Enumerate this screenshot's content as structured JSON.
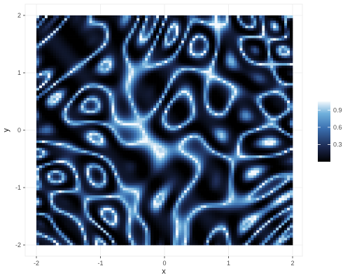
{
  "chart_data": {
    "type": "heatmap",
    "title": "",
    "xlabel": "x",
    "ylabel": "y",
    "xlim": [
      -2,
      2
    ],
    "ylim": [
      -2,
      2
    ],
    "x_ticks": [
      -2,
      -1,
      0,
      1,
      2
    ],
    "y_ticks": [
      -2,
      -1,
      0,
      1,
      2
    ],
    "x_tick_labels": [
      "-2",
      "-1",
      "0",
      "1",
      "2"
    ],
    "y_tick_labels": [
      "-2",
      "-1",
      "0",
      "1",
      "2"
    ],
    "grid": true,
    "legend": {
      "placement": "right",
      "title": "",
      "range": [
        0,
        1.05
      ],
      "breaks": [
        0.3,
        0.6,
        0.9
      ],
      "break_labels": [
        "0.3",
        "0.6",
        "0.9"
      ]
    },
    "colors": {
      "low": "#000000",
      "mid_low": "#1d2a52",
      "mid": "#3a6fb0",
      "mid_high": "#6fb0dc",
      "high": "#f2f8fc",
      "panel_background": "#ebebeb",
      "grid": "#ffffff"
    }
  }
}
